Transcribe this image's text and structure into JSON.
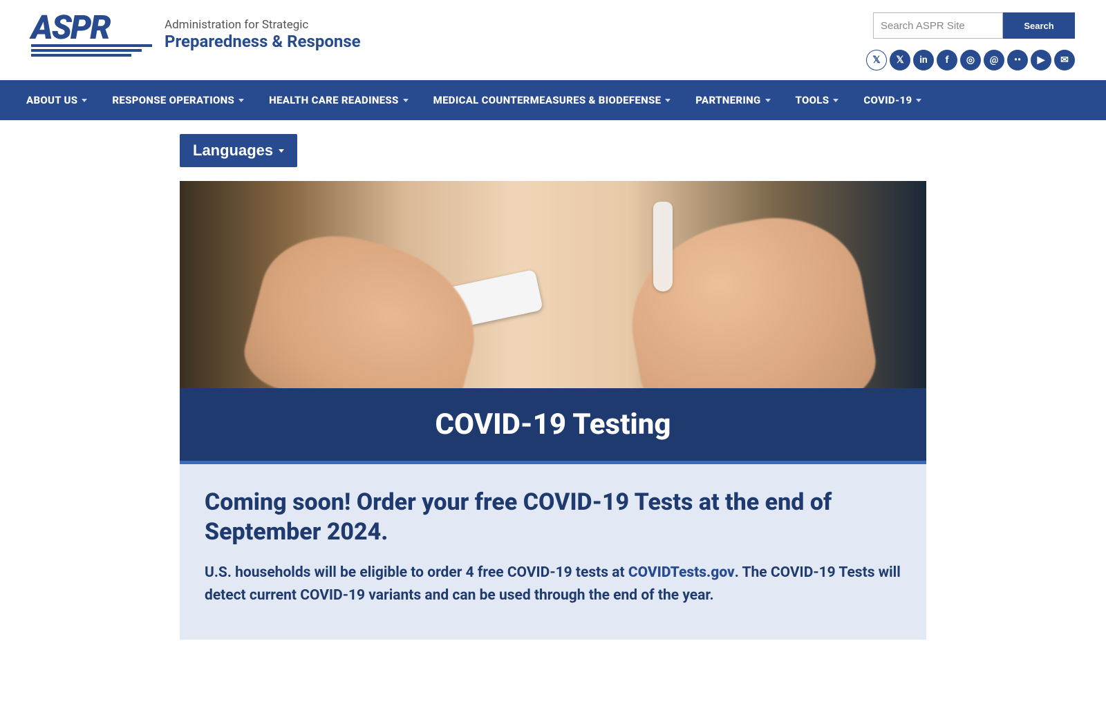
{
  "header": {
    "logo_text": "ASPR",
    "tagline_1": "Administration for Strategic",
    "tagline_2": "Preparedness & Response",
    "search_placeholder": "Search ASPR Site",
    "search_button": "Search"
  },
  "social": [
    {
      "name": "x-outline",
      "glyph": "𝕏",
      "outline": true
    },
    {
      "name": "x",
      "glyph": "𝕏"
    },
    {
      "name": "linkedin",
      "glyph": "in"
    },
    {
      "name": "facebook",
      "glyph": "f"
    },
    {
      "name": "instagram",
      "glyph": "◎"
    },
    {
      "name": "threads",
      "glyph": "@"
    },
    {
      "name": "flickr",
      "glyph": "••"
    },
    {
      "name": "youtube",
      "glyph": "▶"
    },
    {
      "name": "email",
      "glyph": "✉"
    }
  ],
  "nav": [
    {
      "label": "ABOUT US"
    },
    {
      "label": "RESPONSE OPERATIONS"
    },
    {
      "label": "HEALTH CARE READINESS"
    },
    {
      "label": "MEDICAL COUNTERMEASURES & BIODEFENSE"
    },
    {
      "label": "PARTNERING"
    },
    {
      "label": "TOOLS"
    },
    {
      "label": "COVID-19"
    }
  ],
  "languages_button": "Languages",
  "hero_title": "COVID-19 Testing",
  "info": {
    "heading": "Coming soon! Order your free COVID-19 Tests at the end of September 2024.",
    "body_pre": "U.S. households will be eligible to order 4 free COVID-19 tests at ",
    "link_text": "COVIDTests.gov",
    "body_post": ". The COVID-19 Tests will detect current COVID-19 variants and can be used through the end of the year."
  },
  "colors": {
    "brand": "#284a8f",
    "hero_bar": "#1f3a6e",
    "panel_bg": "#e2e9f4"
  }
}
